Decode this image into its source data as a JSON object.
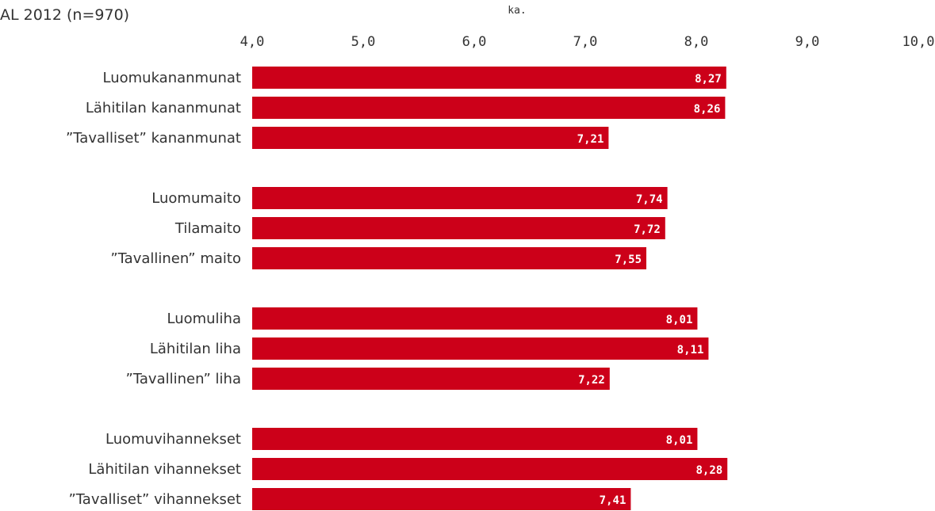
{
  "subtitle": "AL 2012 (n=970)",
  "colors": {
    "bar": "#cc0019",
    "bar_text": "#ffffff",
    "text": "#333333"
  },
  "chart_data": {
    "type": "bar",
    "orientation": "horizontal",
    "xlabel": "ka.",
    "xlim": [
      4.0,
      10.0
    ],
    "x_ticks": [
      4.0,
      5.0,
      6.0,
      7.0,
      8.0,
      9.0,
      10.0
    ],
    "x_tick_labels": [
      "4,0",
      "5,0",
      "6,0",
      "7,0",
      "8,0",
      "9,0",
      "10,0"
    ],
    "grid": false,
    "axis_position": "top",
    "groups": [
      {
        "categories": [
          "Luomukananmunat",
          "Lähitilan kananmunat",
          "”Tavalliset”  kananmunat"
        ],
        "values": [
          8.27,
          8.26,
          7.21
        ],
        "value_labels": [
          "8,27",
          "8,26",
          "7,21"
        ]
      },
      {
        "categories": [
          "Luomumaito",
          "Tilamaito",
          "”Tavallinen”  maito"
        ],
        "values": [
          7.74,
          7.72,
          7.55
        ],
        "value_labels": [
          "7,74",
          "7,72",
          "7,55"
        ]
      },
      {
        "categories": [
          "Luomuliha",
          "Lähitilan liha",
          "”Tavallinen”  liha"
        ],
        "values": [
          8.01,
          8.11,
          7.22
        ],
        "value_labels": [
          "8,01",
          "8,11",
          "7,22"
        ]
      },
      {
        "categories": [
          "Luomuvihannekset",
          "Lähitilan vihannekset",
          "”Tavalliset”  vihannekset"
        ],
        "values": [
          8.01,
          8.28,
          7.41
        ],
        "value_labels": [
          "8,01",
          "8,28",
          "7,41"
        ]
      }
    ]
  }
}
